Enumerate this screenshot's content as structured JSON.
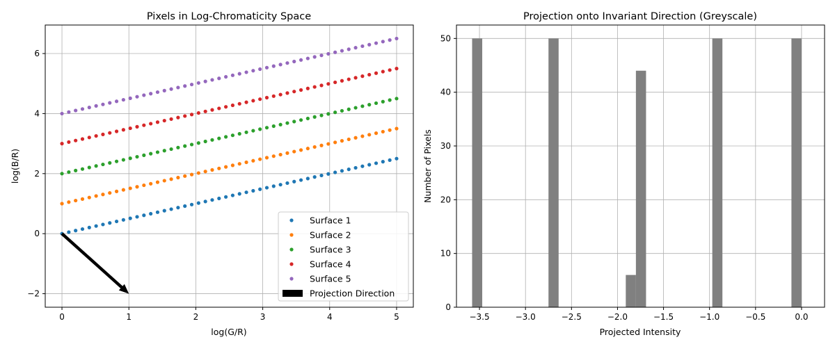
{
  "chart_data": [
    {
      "type": "scatter",
      "title": "Pixels in Log-Chromaticity Space",
      "xlabel": "log(G/R)",
      "ylabel": "log(B/R)",
      "xlim": [
        -0.25,
        5.25
      ],
      "ylim": [
        -2.45,
        6.95
      ],
      "xticks": [
        0,
        1,
        2,
        3,
        4,
        5
      ],
      "yticks": [
        -2,
        0,
        2,
        4,
        6
      ],
      "grid": true,
      "legend_position": "lower-right",
      "points_per_series": 50,
      "series": [
        {
          "name": "Surface 1",
          "color": "#1f77b4",
          "x_start": 0,
          "x_end": 5,
          "slope": 0.5,
          "intercept": 0
        },
        {
          "name": "Surface 2",
          "color": "#ff7f0e",
          "x_start": 0,
          "x_end": 5,
          "slope": 0.5,
          "intercept": 1
        },
        {
          "name": "Surface 3",
          "color": "#2ca02c",
          "x_start": 0,
          "x_end": 5,
          "slope": 0.5,
          "intercept": 2
        },
        {
          "name": "Surface 4",
          "color": "#d62728",
          "x_start": 0,
          "x_end": 5,
          "slope": 0.5,
          "intercept": 3
        },
        {
          "name": "Surface 5",
          "color": "#9467bd",
          "x_start": 0,
          "x_end": 5,
          "slope": 0.5,
          "intercept": 4
        }
      ],
      "arrow": {
        "name": "Projection Direction",
        "from": [
          0,
          0
        ],
        "to": [
          1,
          -2
        ],
        "color": "#000000"
      }
    },
    {
      "type": "bar",
      "title": "Projection onto Invariant Direction (Greyscale)",
      "xlabel": "Projected Intensity",
      "ylabel": "Number of Pixels",
      "xlim": [
        -3.75,
        0.25
      ],
      "ylim": [
        0,
        52.5
      ],
      "xticks": [
        -3.5,
        -3.0,
        -2.5,
        -2.0,
        -1.5,
        -1.0,
        -0.5,
        0.0
      ],
      "xtick_labels": [
        "−3.5",
        "−3.0",
        "−2.5",
        "−2.0",
        "−1.5",
        "−1.0",
        "−0.5",
        "0.0"
      ],
      "yticks": [
        0,
        10,
        20,
        30,
        40,
        50
      ],
      "grid": true,
      "color": "#808080",
      "bins": [
        {
          "x0": -3.58,
          "x1": -3.47,
          "count": 50
        },
        {
          "x0": -2.75,
          "x1": -2.64,
          "count": 50
        },
        {
          "x0": -1.91,
          "x1": -1.8,
          "count": 6
        },
        {
          "x0": -1.8,
          "x1": -1.69,
          "count": 44
        },
        {
          "x0": -0.97,
          "x1": -0.86,
          "count": 50
        },
        {
          "x0": -0.11,
          "x1": 0.0,
          "count": 50
        }
      ]
    }
  ]
}
